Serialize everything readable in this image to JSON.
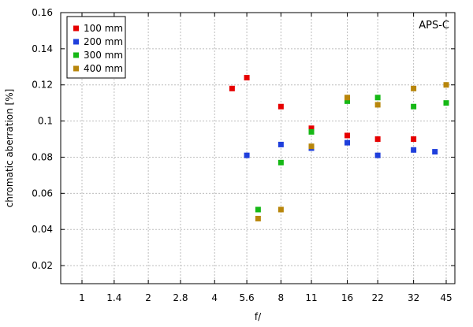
{
  "chart_data": {
    "type": "scatter",
    "title": "",
    "corner_label": "APS-C",
    "xlabel": "f/",
    "ylabel": "chromatic aberration [%]",
    "x_ticks": [
      "1",
      "1.4",
      "2",
      "2.8",
      "4",
      "5.6",
      "8",
      "11",
      "16",
      "22",
      "32",
      "45"
    ],
    "y_ticks": [
      "0.02",
      "0.04",
      "0.06",
      "0.08",
      "0.1",
      "0.12",
      "0.14",
      "0.16"
    ],
    "ylim": [
      0.01,
      0.16
    ],
    "x_scale": "log2 (f-stops)",
    "grid": true,
    "legend_position": "top-left",
    "series": [
      {
        "name": "100 mm",
        "color": "#e60000",
        "points": [
          [
            4.8,
            0.118
          ],
          [
            5.6,
            0.124
          ],
          [
            8,
            0.108
          ],
          [
            11,
            0.096
          ],
          [
            16,
            0.092
          ],
          [
            22,
            0.09
          ],
          [
            32,
            0.09
          ]
        ]
      },
      {
        "name": "200 mm",
        "color": "#1f3fdc",
        "points": [
          [
            5.6,
            0.081
          ],
          [
            8,
            0.087
          ],
          [
            11,
            0.085
          ],
          [
            16,
            0.088
          ],
          [
            22,
            0.081
          ],
          [
            32,
            0.084
          ],
          [
            40,
            0.083
          ]
        ]
      },
      {
        "name": "300 mm",
        "color": "#16b816",
        "points": [
          [
            6.3,
            0.051
          ],
          [
            8,
            0.077
          ],
          [
            11,
            0.094
          ],
          [
            16,
            0.111
          ],
          [
            22,
            0.113
          ],
          [
            32,
            0.108
          ],
          [
            45,
            0.11
          ]
        ]
      },
      {
        "name": "400 mm",
        "color": "#b8860b",
        "points": [
          [
            6.3,
            0.046
          ],
          [
            8,
            0.051
          ],
          [
            11,
            0.086
          ],
          [
            16,
            0.113
          ],
          [
            22,
            0.109
          ],
          [
            32,
            0.118
          ],
          [
            45,
            0.12
          ]
        ]
      }
    ]
  }
}
